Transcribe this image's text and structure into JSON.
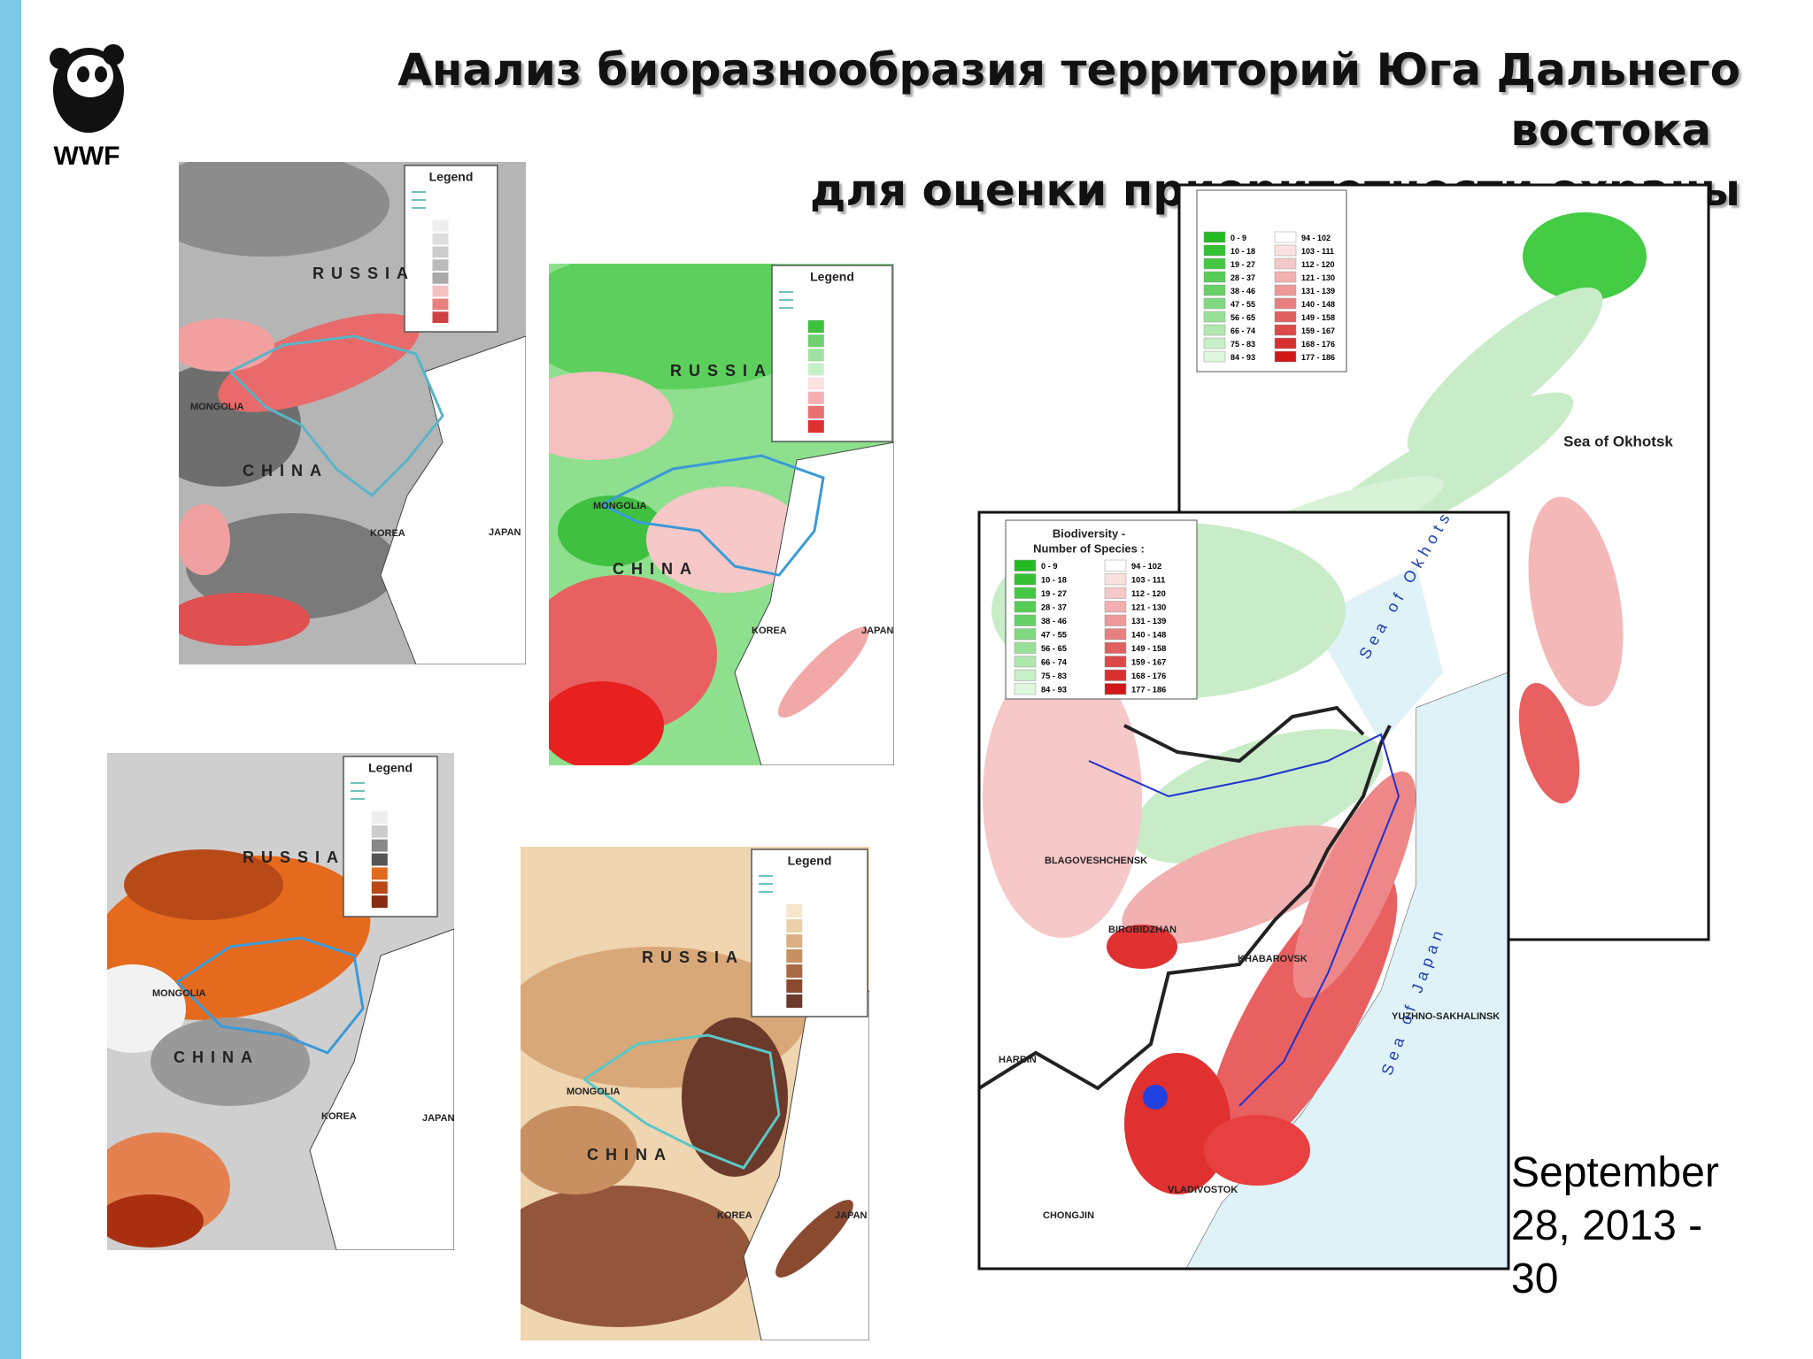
{
  "header": {
    "logo": "WWF",
    "title_lines": [
      "Анализ биоразнообразия территорий Юга Дальнего",
      "востока",
      "для оценки приоритетности охраны"
    ]
  },
  "maps": [
    {
      "legend": "Legend",
      "labels": [
        "RUSSIA",
        "MONGOLIA",
        "CHINA",
        "KOREA",
        "JAPAN"
      ]
    },
    {
      "legend": "Legend",
      "labels": [
        "RUSSIA",
        "MONGOLIA",
        "CHINA",
        "KOREA",
        "JAPAN"
      ]
    },
    {
      "legend": "Legend",
      "labels": [
        "RUSSIA",
        "MONGOLIA",
        "CHINA",
        "KOREA",
        "JAPAN"
      ]
    },
    {
      "legend": "Legend",
      "labels": [
        "RUSSIA",
        "MONGOLIA",
        "CHINA",
        "KOREA",
        "JAPAN"
      ]
    },
    {
      "labels": [
        "Sea of Okhotsk"
      ]
    },
    {
      "legend_title": [
        "Biodiversity -",
        "Number of Species :"
      ],
      "labels": [
        "BLAGOVESHCHENSK",
        "BIROBIDZHAN",
        "KHABAROVSK",
        "YUZHNO-SAKHALINSK",
        "HARBIN",
        "VLADIVOSTOK",
        "CHONGJIN",
        "Sea of Okhotsk",
        "Sea of Japan"
      ]
    }
  ],
  "species_ranges": {
    "low": [
      "0 - 9",
      "10 - 18",
      "19 - 27",
      "28 - 37",
      "38 - 46",
      "47 - 55",
      "56 - 65",
      "66 - 74",
      "75 - 83",
      "84 - 93"
    ],
    "high": [
      "94 - 102",
      "103 - 111",
      "112 - 120",
      "121 - 130",
      "131 - 139",
      "140 - 148",
      "149 - 158",
      "159 - 167",
      "168 - 176",
      "177 - 186"
    ]
  },
  "footer": {
    "date": "September 28, 2013 - 30"
  }
}
